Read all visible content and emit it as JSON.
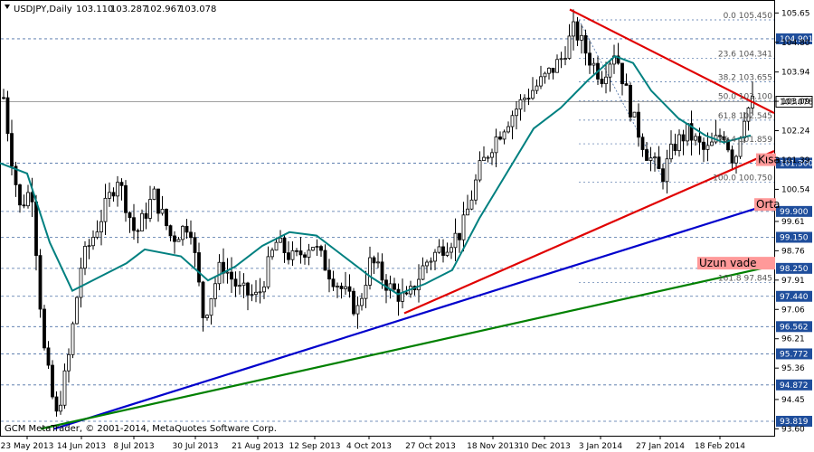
{
  "chart_data": {
    "type": "candlestick",
    "title": "USDJPY,Daily",
    "ohlc_header": [
      "103.110",
      "103.287",
      "102.967",
      "103.078"
    ],
    "copyright": "GCM MetaTrader, © 2001-2014, MetaQuotes Software Corp.",
    "ylim": [
      93.4,
      106.0
    ],
    "price_ticks": [
      "105.65",
      "104.80",
      "103.94",
      "103.09",
      "102.24",
      "101.39",
      "100.54",
      "99.61",
      "98.76",
      "97.91",
      "97.06",
      "96.21",
      "95.36",
      "94.45",
      "93.60"
    ],
    "x_labels": [
      "23 May 2013",
      "14 Jun 2013",
      "8 Jul 2013",
      "30 Jul 2013",
      "21 Aug 2013",
      "12 Sep 2013",
      "4 Oct 2013",
      "27 Oct 2013",
      "18 Nov 2013",
      "10 Dec 2013",
      "3 Jan 2014",
      "27 Jan 2014",
      "18 Feb 2014"
    ],
    "horizontal_levels": [
      {
        "label": "104.901",
        "price": 104.901
      },
      {
        "label": "103.078",
        "price": 103.078,
        "current": true
      },
      {
        "label": "101.300",
        "price": 101.3
      },
      {
        "label": "99.900",
        "price": 99.9
      },
      {
        "label": "99.150",
        "price": 99.15
      },
      {
        "label": "98.250",
        "price": 98.25
      },
      {
        "label": "97.440",
        "price": 97.44
      },
      {
        "label": "96.562",
        "price": 96.562
      },
      {
        "label": "95.772",
        "price": 95.772
      },
      {
        "label": "94.872",
        "price": 94.872
      },
      {
        "label": "93.819",
        "price": 93.819
      }
    ],
    "fib_levels": [
      {
        "label": "0.0 105.450",
        "price": 105.45
      },
      {
        "label": "23.6 104.341",
        "price": 104.341
      },
      {
        "label": "38.2 103.655",
        "price": 103.655
      },
      {
        "label": "50.0 103.100",
        "price": 103.1
      },
      {
        "label": "61.8 102.545",
        "price": 102.545
      },
      {
        "label": "76.4 101.859",
        "price": 101.859
      },
      {
        "label": "100.0 100.750",
        "price": 100.75
      },
      {
        "label": "161.8 97.845",
        "price": 97.845
      }
    ],
    "trendline_labels": [
      {
        "label": "Kısa",
        "color": "#ff9999"
      },
      {
        "label": "Orta",
        "color": "#ff9999"
      },
      {
        "label": "Uzun vade",
        "color": "#ff9999"
      }
    ],
    "colors": {
      "candles": "#000000",
      "ma": "#008080",
      "short_trend": "#e00000",
      "mid_trend": "#0000cc",
      "long_trend": "#008000",
      "grid": "#4a6fa5"
    },
    "moving_average_anchors": [
      [
        0,
        101.3
      ],
      [
        30,
        101.0
      ],
      [
        55,
        99.0
      ],
      [
        80,
        97.6
      ],
      [
        110,
        98.0
      ],
      [
        140,
        98.4
      ],
      [
        160,
        98.8
      ],
      [
        200,
        98.6
      ],
      [
        230,
        97.9
      ],
      [
        260,
        98.3
      ],
      [
        290,
        98.9
      ],
      [
        320,
        99.3
      ],
      [
        350,
        99.2
      ],
      [
        380,
        98.6
      ],
      [
        410,
        98.0
      ],
      [
        440,
        97.5
      ],
      [
        470,
        97.8
      ],
      [
        500,
        98.2
      ],
      [
        530,
        99.7
      ],
      [
        560,
        101.0
      ],
      [
        590,
        102.3
      ],
      [
        620,
        102.9
      ],
      [
        650,
        103.7
      ],
      [
        680,
        104.4
      ],
      [
        700,
        104.2
      ],
      [
        720,
        103.4
      ],
      [
        750,
        102.6
      ],
      [
        780,
        102.1
      ],
      [
        800,
        101.9
      ],
      [
        815,
        102.0
      ],
      [
        830,
        102.1
      ]
    ],
    "price_anchors": [
      [
        4,
        103.2
      ],
      [
        12,
        101.6
      ],
      [
        22,
        100.0
      ],
      [
        35,
        100.6
      ],
      [
        48,
        96.0
      ],
      [
        62,
        93.9
      ],
      [
        75,
        95.5
      ],
      [
        90,
        98.4
      ],
      [
        110,
        99.6
      ],
      [
        130,
        100.9
      ],
      [
        150,
        99.2
      ],
      [
        170,
        100.4
      ],
      [
        190,
        99.1
      ],
      [
        210,
        99.6
      ],
      [
        225,
        96.8
      ],
      [
        245,
        98.4
      ],
      [
        265,
        97.6
      ],
      [
        285,
        97.4
      ],
      [
        305,
        99.0
      ],
      [
        325,
        98.5
      ],
      [
        345,
        99.0
      ],
      [
        365,
        98.1
      ],
      [
        385,
        97.4
      ],
      [
        395,
        97.0
      ],
      [
        410,
        98.5
      ],
      [
        430,
        97.7
      ],
      [
        450,
        97.3
      ],
      [
        470,
        98.4
      ],
      [
        490,
        98.9
      ],
      [
        510,
        99.3
      ],
      [
        530,
        101.1
      ],
      [
        545,
        101.9
      ],
      [
        560,
        102.5
      ],
      [
        580,
        103.2
      ],
      [
        600,
        103.7
      ],
      [
        620,
        104.3
      ],
      [
        635,
        105.2
      ],
      [
        650,
        104.4
      ],
      [
        665,
        103.8
      ],
      [
        680,
        104.6
      ],
      [
        700,
        102.6
      ],
      [
        715,
        101.6
      ],
      [
        732,
        100.9
      ],
      [
        745,
        101.8
      ],
      [
        760,
        102.2
      ],
      [
        780,
        101.6
      ],
      [
        800,
        102.2
      ],
      [
        812,
        101.3
      ],
      [
        822,
        102.7
      ],
      [
        832,
        103.05
      ]
    ]
  }
}
